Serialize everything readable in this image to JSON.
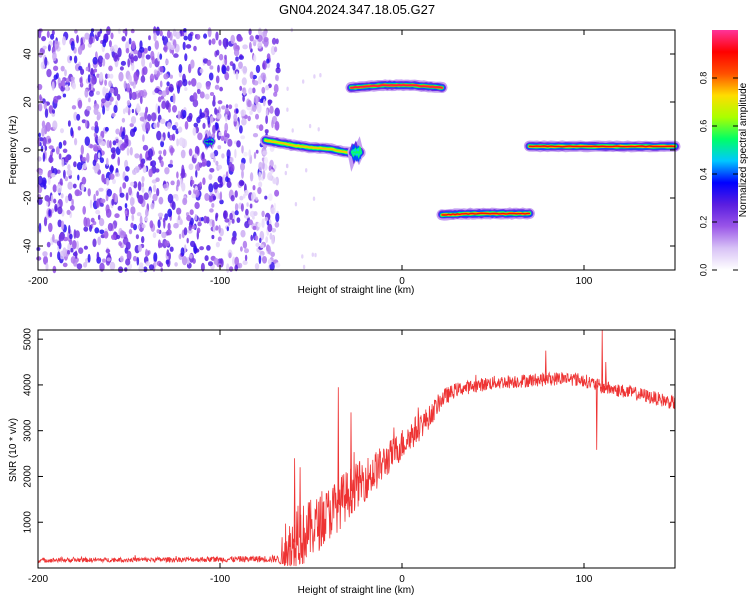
{
  "title": "GN04.2024.347.18.05.G27",
  "chart_data": [
    {
      "type": "heatmap",
      "xlabel": "Height of straight line (km)",
      "ylabel": "Frequency (Hz)",
      "xlim": [
        -200,
        150
      ],
      "ylim": [
        -50,
        50
      ],
      "xticks": [
        -200,
        -100,
        0,
        100
      ],
      "yticks": [
        -40,
        -20,
        0,
        20,
        40
      ],
      "colorbar": {
        "label": "Normalized spectral amplitude",
        "range": [
          0.0,
          1.0
        ],
        "ticks": [
          0.0,
          0.2,
          0.4,
          0.6,
          0.8
        ],
        "tick_labels": [
          "0.0",
          "0.2",
          "0.4",
          "0.6",
          "0.8"
        ],
        "colormap": [
          "#ffffff",
          "#d8c2f6",
          "#9a55e8",
          "#5a1ee0",
          "#0000ff",
          "#00c8ff",
          "#00ff66",
          "#aaff00",
          "#ffdd00",
          "#ff5000",
          "#ff0000",
          "#ff3399"
        ]
      },
      "noise_region": {
        "x": [
          -200,
          -68
        ],
        "y": [
          -50,
          50
        ],
        "level": 0.15
      },
      "tracks": [
        {
          "x": [
            -108,
            -104
          ],
          "y": [
            3.5,
            3.5
          ],
          "width": 3,
          "peak": 0.35
        },
        {
          "x": [
            -75,
            -60,
            -50,
            -40,
            -30,
            -27
          ],
          "y": [
            4,
            2,
            1,
            0.5,
            -1,
            -1
          ],
          "width": 5,
          "peak": 0.75
        },
        {
          "x": [
            -27,
            -23
          ],
          "y": [
            -1,
            -1
          ],
          "width": 5,
          "peak": 0.55
        },
        {
          "x": [
            -28,
            -10,
            5,
            22
          ],
          "y": [
            26,
            27,
            27,
            26
          ],
          "width": 5,
          "peak": 0.95
        },
        {
          "x": [
            22,
            40,
            70
          ],
          "y": [
            -27,
            -26.5,
            -26.5
          ],
          "width": 5,
          "peak": 0.9
        },
        {
          "x": [
            70,
            90,
            110,
            150
          ],
          "y": [
            1.5,
            1.5,
            1.5,
            1.5
          ],
          "width": 5,
          "peak": 0.9
        }
      ]
    },
    {
      "type": "line",
      "xlabel": "Height of straight line (km)",
      "ylabel": "SNR (10 * v/v)",
      "xlim": [
        -200,
        150
      ],
      "ylim": [
        0,
        5200
      ],
      "xticks": [
        -200,
        -100,
        0,
        100
      ],
      "yticks": [
        1000,
        2000,
        3000,
        4000,
        5000
      ],
      "color": "#ee3333",
      "profile": {
        "x": [
          -200,
          -150,
          -100,
          -68,
          -65,
          -55,
          -45,
          -35,
          -25,
          -15,
          -5,
          5,
          15,
          22,
          30,
          50,
          70,
          90,
          100,
          110,
          130,
          150
        ],
        "base": [
          170,
          180,
          190,
          200,
          350,
          700,
          1000,
          1400,
          1800,
          2100,
          2500,
          2900,
          3300,
          3700,
          3900,
          4050,
          4100,
          4150,
          4100,
          3950,
          3800,
          3600
        ],
        "noise": [
          50,
          50,
          60,
          80,
          500,
          700,
          600,
          600,
          500,
          450,
          350,
          350,
          250,
          200,
          150,
          150,
          150,
          150,
          150,
          150,
          150,
          150
        ]
      },
      "spikes": [
        {
          "x": -59,
          "y": 2400
        },
        {
          "x": -56,
          "y": 2200
        },
        {
          "x": -35,
          "y": 3950
        },
        {
          "x": -28,
          "y": 3400
        },
        {
          "x": 79,
          "y": 4750
        },
        {
          "x": 107,
          "y": 2580
        },
        {
          "x": 110,
          "y": 5200
        },
        {
          "x": 112,
          "y": 4500
        }
      ]
    }
  ]
}
